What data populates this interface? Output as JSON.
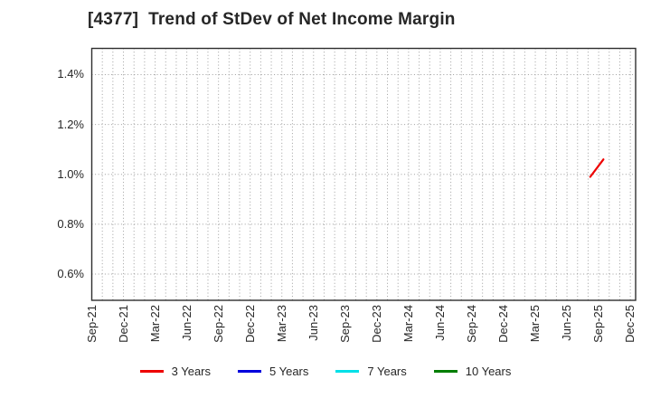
{
  "title": "[4377]  Trend of StDev of Net Income Margin",
  "chart_data": {
    "type": "line",
    "title": "[4377]  Trend of StDev of Net Income Margin",
    "grid": "dotted",
    "grid_color": "#9e9e9e",
    "frame_color": "#2f2f2f",
    "legend_position": "bottom",
    "x_axis": {
      "tick_labels": [
        "Sep-21",
        "Dec-21",
        "Mar-22",
        "Jun-22",
        "Sep-22",
        "Dec-22",
        "Mar-23",
        "Jun-23",
        "Sep-23",
        "Dec-23",
        "Mar-24",
        "Jun-24",
        "Sep-24",
        "Dec-24",
        "Mar-25",
        "Jun-25",
        "Sep-25",
        "Dec-25"
      ],
      "months_between_ticks": 3,
      "minor_gridline_every_months": 1,
      "months_total": 52,
      "xlim_months": [
        0,
        51.5
      ]
    },
    "y_axis": {
      "unit": "%",
      "ylim": [
        0.495,
        1.505
      ],
      "ticks": [
        {
          "value": 0.6,
          "label": "0.6%"
        },
        {
          "value": 0.8,
          "label": "0.8%"
        },
        {
          "value": 1.0,
          "label": "1.0%"
        },
        {
          "value": 1.2,
          "label": "1.2%"
        },
        {
          "value": 1.4,
          "label": "1.4%"
        }
      ]
    },
    "series": [
      {
        "name": "3 Years",
        "color": "#ee0000",
        "points": [
          {
            "date": "Aug-25",
            "month_index": 47.2,
            "value": 0.99
          },
          {
            "date": "Sep-25",
            "month_index": 48.45,
            "value": 1.06
          }
        ]
      },
      {
        "name": "5 Years",
        "color": "#0000dd",
        "points": []
      },
      {
        "name": "7 Years",
        "color": "#00e0e8",
        "points": []
      },
      {
        "name": "10 Years",
        "color": "#007d00",
        "points": []
      }
    ]
  }
}
